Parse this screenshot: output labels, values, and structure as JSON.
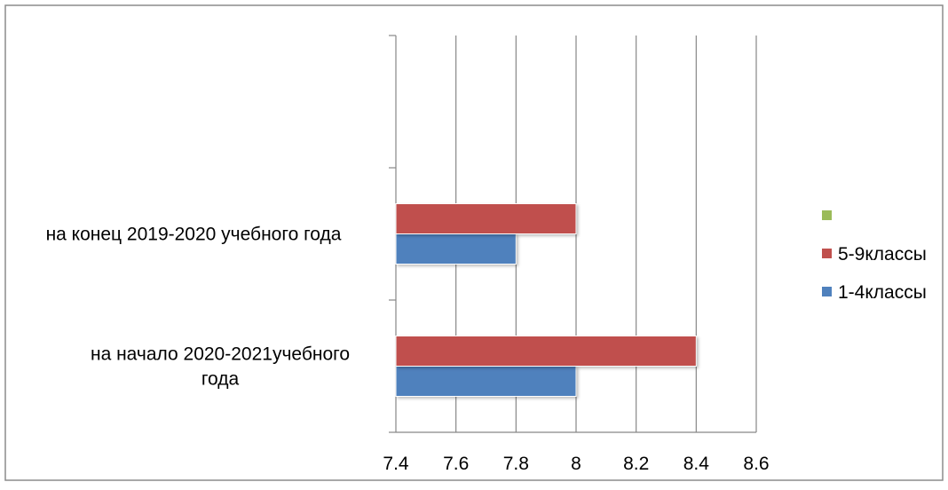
{
  "chart_data": {
    "type": "bar",
    "orientation": "horizontal",
    "title": "",
    "xlabel": "",
    "ylabel": "",
    "categories": [
      [
        "на конец 2019-2020 учебного года"
      ],
      [
        "на начало 2020-2021учебного",
        "года"
      ]
    ],
    "series": [
      {
        "name": "1-4классы",
        "color": "#4F81BD",
        "values": [
          7.8,
          8.0
        ]
      },
      {
        "name": "5-9классы",
        "color": "#C0504D",
        "values": [
          8.0,
          8.4
        ]
      },
      {
        "name": "",
        "color": "#9BBB59",
        "values": [
          null,
          null
        ]
      }
    ],
    "xlim": [
      7.4,
      8.6
    ],
    "xticks": [
      "7.4",
      "7.6",
      "7.8",
      "8",
      "8.2",
      "8.4",
      "8.6"
    ],
    "grid": true,
    "legend_position": "right"
  }
}
